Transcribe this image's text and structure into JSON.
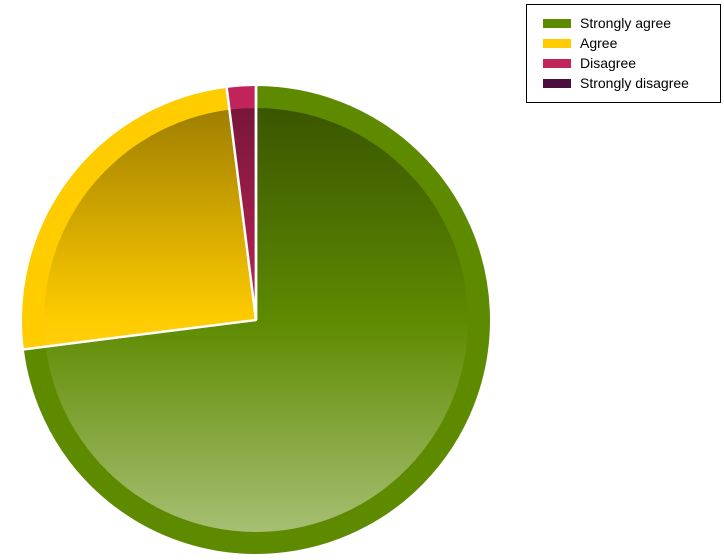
{
  "chart_data": {
    "type": "pie",
    "title": "",
    "categories": [
      "Strongly agree",
      "Agree",
      "Disagree",
      "Strongly disagree"
    ],
    "values": [
      73,
      25,
      2,
      0
    ],
    "unit": "%",
    "colors": [
      "#5e8a00",
      "#ffcc00",
      "#c0245a",
      "#4a0f3d"
    ],
    "start_angle_deg": 0,
    "direction": "clockwise",
    "legend_position": "top-right"
  }
}
